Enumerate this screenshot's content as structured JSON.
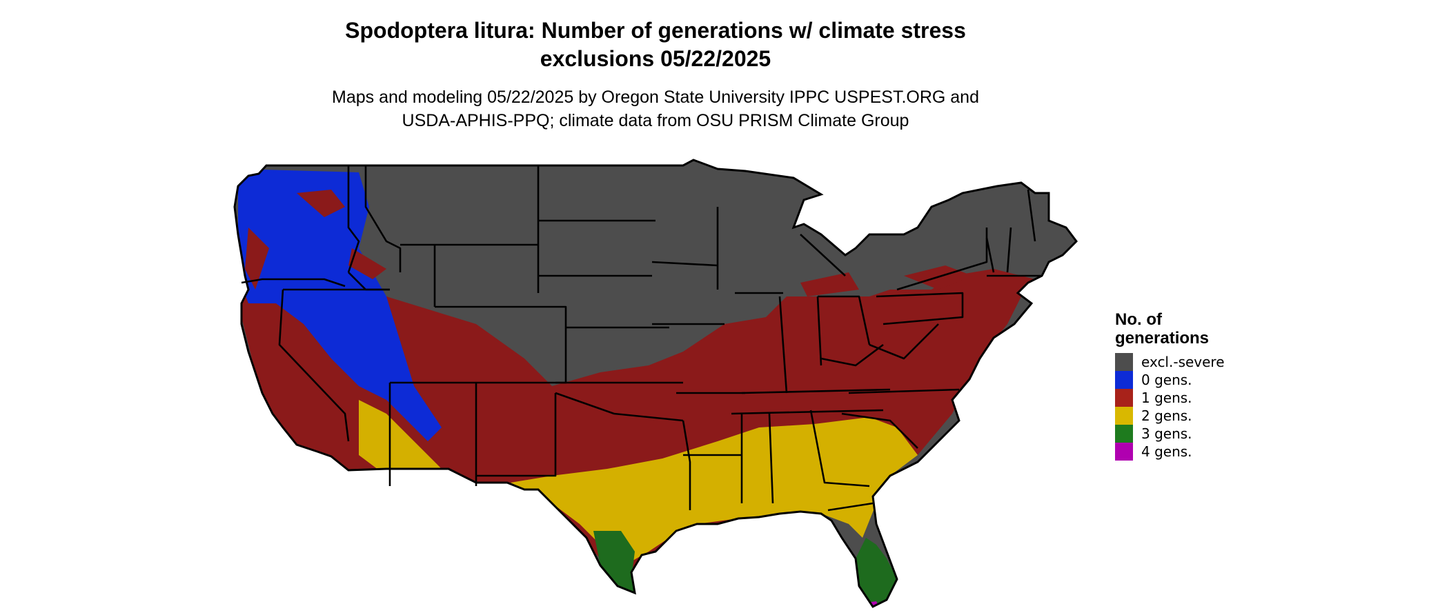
{
  "title_line1": "Spodoptera litura: Number of generations w/ climate stress",
  "title_line2": "exclusions 05/22/2025",
  "subtitle_line1": "Maps and modeling 05/22/2025 by Oregon State University IPPC USPEST.ORG and",
  "subtitle_line2": "USDA-APHIS-PPQ; climate data from OSU PRISM Climate Group",
  "legend": {
    "title_line1": "No. of",
    "title_line2": "generations",
    "items": [
      {
        "label": "excl.-severe",
        "color": "#4d4d4d"
      },
      {
        "label": "0 gens.",
        "color": "#0d2bd6"
      },
      {
        "label": "1 gens.",
        "color": "#a8221a"
      },
      {
        "label": "2 gens.",
        "color": "#d9b800"
      },
      {
        "label": "3 gens.",
        "color": "#1e7b1e"
      },
      {
        "label": "4 gens.",
        "color": "#b000b0"
      }
    ]
  },
  "map_colors": {
    "excluded": "#4d4d4d",
    "zero": "#0d2bd6",
    "one": "#8b1a1a",
    "two": "#d4b000",
    "three": "#1e6b1e",
    "four": "#b000b0",
    "border": "#000000"
  }
}
